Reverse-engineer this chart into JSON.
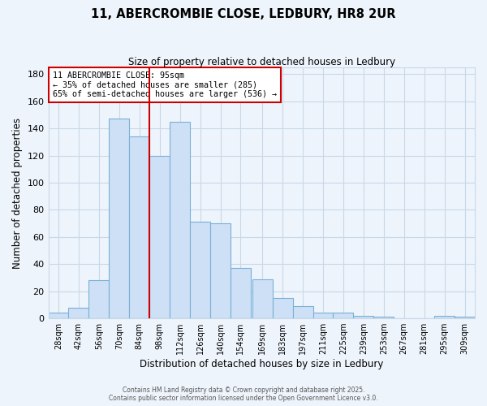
{
  "title": "11, ABERCROMBIE CLOSE, LEDBURY, HR8 2UR",
  "subtitle": "Size of property relative to detached houses in Ledbury",
  "xlabel": "Distribution of detached houses by size in Ledbury",
  "ylabel": "Number of detached properties",
  "bar_color": "#cde0f5",
  "bar_edge_color": "#7ab0d8",
  "background_color": "#eef4fb",
  "plot_bg_color": "#eef4fb",
  "grid_color": "#c8d8e8",
  "vline_color": "#cc0000",
  "vline_x": 98,
  "annotation_box_color": "#cc0000",
  "categories": [
    "28sqm",
    "42sqm",
    "56sqm",
    "70sqm",
    "84sqm",
    "98sqm",
    "112sqm",
    "126sqm",
    "140sqm",
    "154sqm",
    "169sqm",
    "183sqm",
    "197sqm",
    "211sqm",
    "225sqm",
    "239sqm",
    "253sqm",
    "267sqm",
    "281sqm",
    "295sqm",
    "309sqm"
  ],
  "bin_starts": [
    28,
    42,
    56,
    70,
    84,
    98,
    112,
    126,
    140,
    154,
    169,
    183,
    197,
    211,
    225,
    239,
    253,
    267,
    281,
    295,
    309
  ],
  "bin_width": 14,
  "values": [
    4,
    8,
    28,
    147,
    134,
    120,
    145,
    71,
    70,
    37,
    29,
    15,
    9,
    4,
    4,
    2,
    1,
    0,
    0,
    2,
    1
  ],
  "ylim": [
    0,
    185
  ],
  "yticks": [
    0,
    20,
    40,
    60,
    80,
    100,
    120,
    140,
    160,
    180
  ],
  "annotation_line1": "11 ABERCROMBIE CLOSE: 95sqm",
  "annotation_line2": "← 35% of detached houses are smaller (285)",
  "annotation_line3": "65% of semi-detached houses are larger (536) →",
  "footer1": "Contains HM Land Registry data © Crown copyright and database right 2025.",
  "footer2": "Contains public sector information licensed under the Open Government Licence v3.0."
}
